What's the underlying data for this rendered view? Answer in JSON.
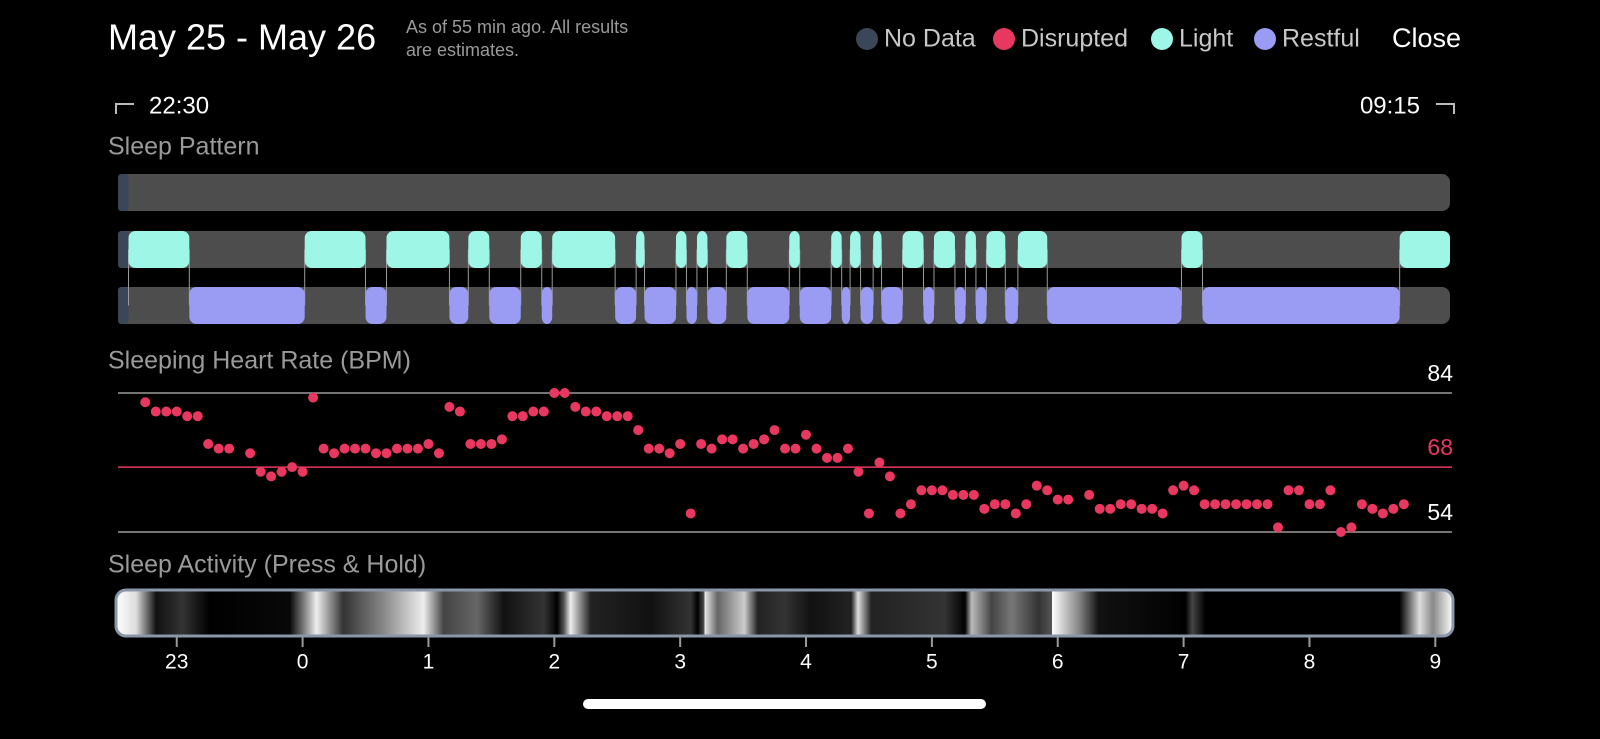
{
  "header": {
    "title": "May 25 - May 26",
    "note": [
      "As of 55 min ago. All results",
      "are estimates."
    ],
    "legend": [
      {
        "name": "No Data",
        "color": "#3b4658"
      },
      {
        "name": "Disrupted",
        "color": "#e8385f"
      },
      {
        "name": "Light",
        "color": "#9ef6e6"
      },
      {
        "name": "Restful",
        "color": "#999cf2"
      }
    ],
    "close": "Close"
  },
  "range": {
    "start": "22:30",
    "end": "09:15"
  },
  "axis": {
    "xlim": [
      2,
      637
    ],
    "xticks": [
      {
        "value": 30,
        "label": "23"
      },
      {
        "value": 90,
        "label": "0"
      },
      {
        "value": 150,
        "label": "1"
      },
      {
        "value": 210,
        "label": "2"
      },
      {
        "value": 270,
        "label": "3"
      },
      {
        "value": 330,
        "label": "4"
      },
      {
        "value": 390,
        "label": "5"
      },
      {
        "value": 450,
        "label": "6"
      },
      {
        "value": 510,
        "label": "7"
      },
      {
        "value": 570,
        "label": "8"
      },
      {
        "value": 630,
        "label": "9"
      }
    ]
  },
  "sleep_pattern": {
    "title": "Sleep Pattern",
    "no_data": [
      [
        2,
        7
      ]
    ],
    "disrupted": [],
    "light": [
      [
        7,
        36
      ],
      [
        91,
        120
      ],
      [
        130,
        160
      ],
      [
        169,
        179
      ],
      [
        194,
        204
      ],
      [
        209,
        239
      ],
      [
        249,
        253
      ],
      [
        268,
        273
      ],
      [
        278,
        283
      ],
      [
        292,
        302
      ],
      [
        322,
        327
      ],
      [
        342,
        347
      ],
      [
        351,
        356
      ],
      [
        362,
        366
      ],
      [
        376,
        386
      ],
      [
        391,
        401
      ],
      [
        406,
        411
      ],
      [
        416,
        425
      ],
      [
        431,
        445
      ],
      [
        509,
        519
      ],
      [
        613,
        637
      ]
    ],
    "restful": [
      [
        36,
        91
      ],
      [
        120,
        130
      ],
      [
        160,
        169
      ],
      [
        179,
        194
      ],
      [
        204,
        209
      ],
      [
        239,
        249
      ],
      [
        253,
        268
      ],
      [
        273,
        278
      ],
      [
        283,
        292
      ],
      [
        302,
        322
      ],
      [
        327,
        342
      ],
      [
        347,
        351
      ],
      [
        356,
        362
      ],
      [
        366,
        376
      ],
      [
        386,
        391
      ],
      [
        401,
        406
      ],
      [
        411,
        416
      ],
      [
        425,
        431
      ],
      [
        445,
        509
      ],
      [
        519,
        613
      ]
    ]
  },
  "heart_rate": {
    "type": "scatter",
    "title": "Sleeping Heart Rate (BPM)",
    "color": "#e8385f",
    "ylim": [
      54,
      84
    ],
    "yticks": [
      54,
      84
    ],
    "reference": {
      "value": 68,
      "color": "#e8385f"
    },
    "x": [
      15,
      20,
      25,
      30,
      35,
      40,
      45,
      50,
      55,
      65,
      70,
      75,
      80,
      85,
      90,
      95,
      100,
      105,
      110,
      115,
      120,
      125,
      130,
      135,
      140,
      145,
      150,
      155,
      160,
      165,
      170,
      175,
      180,
      185,
      190,
      195,
      200,
      205,
      210,
      215,
      220,
      225,
      230,
      235,
      240,
      245,
      250,
      255,
      260,
      265,
      270,
      275,
      280,
      285,
      290,
      295,
      300,
      305,
      310,
      315,
      320,
      325,
      330,
      335,
      340,
      345,
      350,
      355,
      360,
      365,
      370,
      375,
      380,
      385,
      390,
      395,
      400,
      405,
      410,
      415,
      420,
      425,
      430,
      435,
      440,
      445,
      450,
      455,
      465,
      470,
      475,
      480,
      485,
      490,
      495,
      500,
      505,
      510,
      515,
      520,
      525,
      530,
      535,
      540,
      545,
      550,
      555,
      560,
      565,
      570,
      575,
      580,
      585,
      590,
      595,
      600,
      605,
      610,
      615
    ],
    "values": [
      82,
      80,
      80,
      80,
      79,
      79,
      73,
      72,
      72,
      71,
      67,
      66,
      67,
      68,
      67,
      83,
      72,
      71,
      72,
      72,
      72,
      71,
      71,
      72,
      72,
      72,
      73,
      71,
      81,
      80,
      73,
      73,
      73,
      74,
      79,
      79,
      80,
      80,
      84,
      84,
      81,
      80,
      80,
      79,
      79,
      79,
      76,
      72,
      72,
      71,
      73,
      58,
      73,
      72,
      74,
      74,
      72,
      73,
      74,
      76,
      72,
      72,
      75,
      72,
      70,
      70,
      72,
      67,
      58,
      69,
      66,
      58,
      60,
      63,
      63,
      63,
      62,
      62,
      62,
      59,
      60,
      60,
      58,
      60,
      64,
      63,
      61,
      61,
      62,
      59,
      59,
      60,
      60,
      59,
      59,
      58,
      63,
      64,
      63,
      60,
      60,
      60,
      60,
      60,
      60,
      60,
      55,
      63,
      63,
      60,
      60,
      63,
      54,
      55,
      60,
      59,
      58,
      59,
      60
    ]
  },
  "activity": {
    "title": "Sleep Activity (Press & Hold)"
  }
}
